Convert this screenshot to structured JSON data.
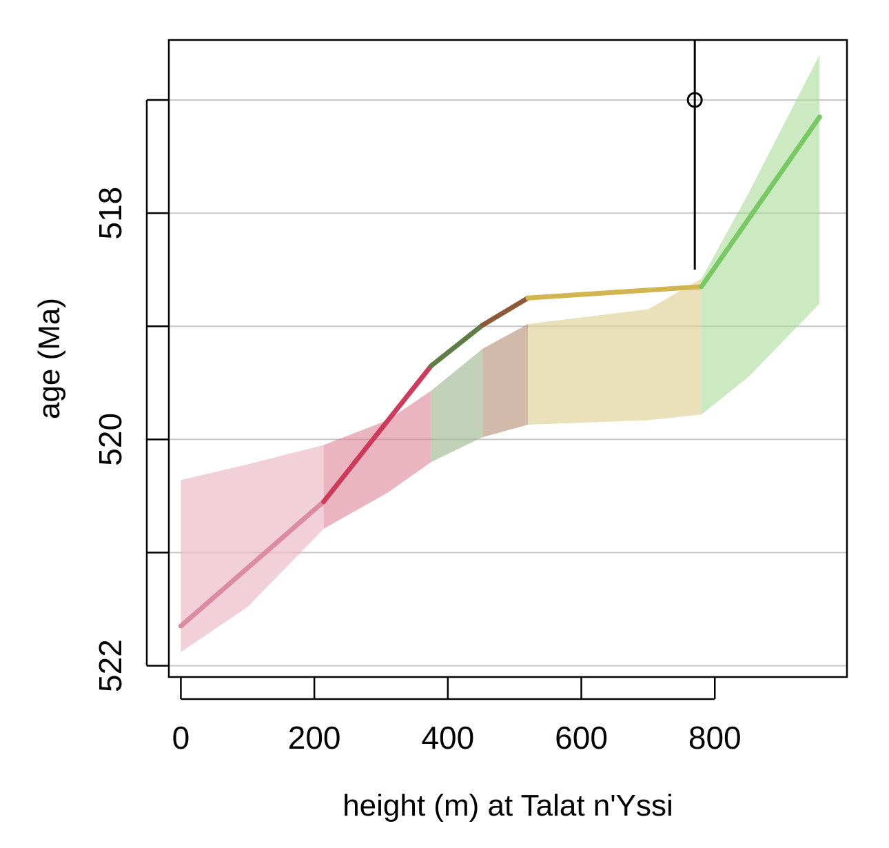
{
  "chart_data": {
    "type": "line",
    "xlabel": "height (m) at Talat n'Yssi",
    "ylabel": "age (Ma)",
    "xlim": [
      -18,
      998
    ],
    "ylim": [
      522.1,
      516.47
    ],
    "y_reversed": true,
    "x_ticks": [
      0,
      200,
      400,
      600,
      800
    ],
    "x_tick_labels": [
      "0",
      "200",
      "400",
      "600",
      "800"
    ],
    "y_ticks": [
      517,
      518,
      519,
      520,
      521,
      522
    ],
    "y_tick_labels": [
      "",
      "518",
      "",
      "520",
      "",
      "522"
    ],
    "grid": {
      "horizontal": true,
      "vertical": false
    },
    "series": [
      {
        "color": "#dc8ca0",
        "band_color": "#e9b7c4",
        "band_opacity": 0.65,
        "line": [
          [
            0,
            521.65
          ],
          [
            214,
            520.55
          ]
        ],
        "band": [
          [
            0,
            520.36,
            521.88
          ],
          [
            100,
            520.22,
            521.48
          ],
          [
            214,
            520.05,
            520.79
          ]
        ]
      },
      {
        "color": "#cc3c5a",
        "band_color": "#dc8296",
        "band_opacity": 0.6,
        "line": [
          [
            214,
            520.55
          ],
          [
            375,
            519.35
          ]
        ],
        "band": [
          [
            214,
            520.05,
            520.79
          ],
          [
            310,
            519.83,
            520.47
          ],
          [
            375,
            519.57,
            520.2
          ]
        ]
      },
      {
        "color": "#5f7d46",
        "band_color": "#a0b990",
        "band_opacity": 0.65,
        "line": [
          [
            375,
            519.35
          ],
          [
            452,
            518.99
          ]
        ],
        "band": [
          [
            375,
            519.57,
            520.2
          ],
          [
            452,
            519.2,
            519.98
          ]
        ]
      },
      {
        "color": "#8c5a38",
        "band_color": "#b9957d",
        "band_opacity": 0.65,
        "line": [
          [
            452,
            518.99
          ],
          [
            520,
            518.75
          ]
        ],
        "band": [
          [
            452,
            519.2,
            519.98
          ],
          [
            520,
            518.98,
            519.87
          ]
        ]
      },
      {
        "color": "#d2b450",
        "band_color": "#dccb8c",
        "band_opacity": 0.6,
        "line": [
          [
            520,
            518.75
          ],
          [
            780,
            518.65
          ]
        ],
        "band": [
          [
            520,
            518.98,
            519.87
          ],
          [
            700,
            518.85,
            519.83
          ],
          [
            780,
            518.58,
            519.78
          ]
        ]
      },
      {
        "color": "#78c864",
        "band_color": "#a8dc98",
        "band_opacity": 0.6,
        "line": [
          [
            780,
            518.65
          ],
          [
            957,
            517.15
          ]
        ],
        "band": [
          [
            780,
            518.58,
            519.78
          ],
          [
            850,
            517.83,
            519.45
          ],
          [
            957,
            516.6,
            518.8
          ]
        ]
      }
    ],
    "points": [
      {
        "x": 770,
        "y": 517.0,
        "y_low": 516.47,
        "y_high": 518.5
      }
    ]
  }
}
